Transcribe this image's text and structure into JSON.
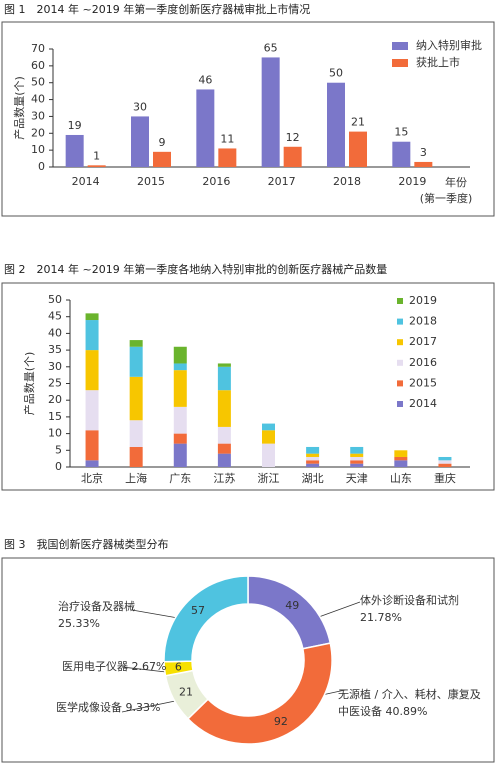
{
  "chart_data": [
    {
      "type": "bar",
      "title": "图 1　2014 年 ~2019 年第一季度创新医疗器械审批上市情况",
      "y_label": "产品数量(个)",
      "x_label": "年份",
      "x_note": "(第一季度)",
      "categories": [
        "2014",
        "2015",
        "2016",
        "2017",
        "2018",
        "2019"
      ],
      "series": [
        {
          "name": "纳入特别审批",
          "color": "#7b77c9",
          "values": [
            19,
            30,
            46,
            65,
            50,
            15
          ]
        },
        {
          "name": "获批上市",
          "color": "#f26b3a",
          "values": [
            1,
            9,
            11,
            12,
            21,
            3
          ]
        }
      ],
      "ylim": [
        0,
        70
      ],
      "yticks": [
        0,
        10,
        20,
        30,
        40,
        50,
        60,
        70
      ]
    },
    {
      "type": "stacked-bar",
      "title": "图 2　2014 年 ~2019 年第一季度各地纳入特别审批的创新医疗器械产品数量",
      "y_label": "产品数量(个)",
      "categories": [
        "北京",
        "上海",
        "广东",
        "江苏",
        "浙江",
        "湖北",
        "天津",
        "山东",
        "重庆"
      ],
      "series": [
        {
          "name": "2014",
          "color": "#7b77c9",
          "values": [
            2,
            0,
            7,
            4,
            0,
            1,
            1,
            2,
            0
          ]
        },
        {
          "name": "2015",
          "color": "#f26b3a",
          "values": [
            9,
            6,
            3,
            3,
            0,
            1,
            1,
            1,
            1
          ]
        },
        {
          "name": "2016",
          "color": "#e6def0",
          "values": [
            12,
            8,
            8,
            5,
            7,
            1,
            1,
            0,
            1
          ]
        },
        {
          "name": "2017",
          "color": "#f7c600",
          "values": [
            12,
            13,
            11,
            11,
            4,
            1,
            1,
            2,
            0
          ]
        },
        {
          "name": "2018",
          "color": "#4fc3e0",
          "values": [
            9,
            9,
            2,
            7,
            2,
            2,
            2,
            0,
            1
          ]
        },
        {
          "name": "2019",
          "color": "#6ab42d",
          "values": [
            2,
            2,
            5,
            1,
            0,
            0,
            0,
            0,
            0
          ]
        }
      ],
      "ylim": [
        0,
        50
      ],
      "yticks": [
        0,
        5,
        10,
        15,
        20,
        25,
        30,
        35,
        40,
        45,
        50
      ]
    },
    {
      "type": "donut",
      "title": "图 3　我国创新医疗器械类型分布",
      "categories": [
        "体外诊断设备和试剂",
        "无源植 / 介入、耗材、康复及中医设备",
        "医学成像设备",
        "医用电子仪器",
        "治疗设备及器械"
      ],
      "values": [
        49,
        92,
        21,
        6,
        57
      ],
      "percent_labels": [
        "21.78%",
        "40.89%",
        "9.33%",
        "2.67%",
        "25.33%"
      ],
      "colors": [
        "#7b77c9",
        "#f26b3a",
        "#e9efd9",
        "#f7e000",
        "#4fc3e0"
      ]
    }
  ]
}
